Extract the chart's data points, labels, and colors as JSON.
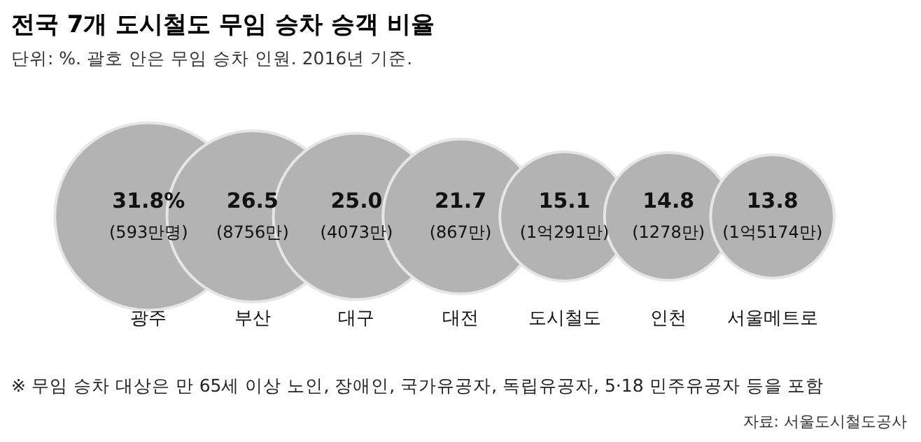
{
  "chart_data": {
    "type": "other",
    "title": "전국 7개 도시철도 무임 승차 승객 비율",
    "subtitle": "단위: %.  괄호 안은 무임 승차 인원. 2016년 기준.",
    "categories": [
      "광주",
      "부산",
      "대구",
      "대전",
      "도시철도",
      "인천",
      "서울메트로"
    ],
    "values": [
      31.8,
      26.5,
      25.0,
      21.7,
      15.1,
      14.8,
      13.8
    ],
    "value_labels": [
      "31.8%\n(593만명)",
      "26.5\n(8756만)",
      "25.0\n(4073만)",
      "21.7\n(867만)",
      "15.1\n(1억291만)",
      "14.8\n(1278만)",
      "13.8\n(1억5174만)"
    ],
    "color": "#b3b3b3",
    "annotations": [
      "※ 무임 승차 대상은 만 65세 이상 노인, 장애인, 국가유공자, 독립유공자, 5·18 민주유공자 등을 포함",
      "자료: 서울도시철도공사"
    ]
  }
}
